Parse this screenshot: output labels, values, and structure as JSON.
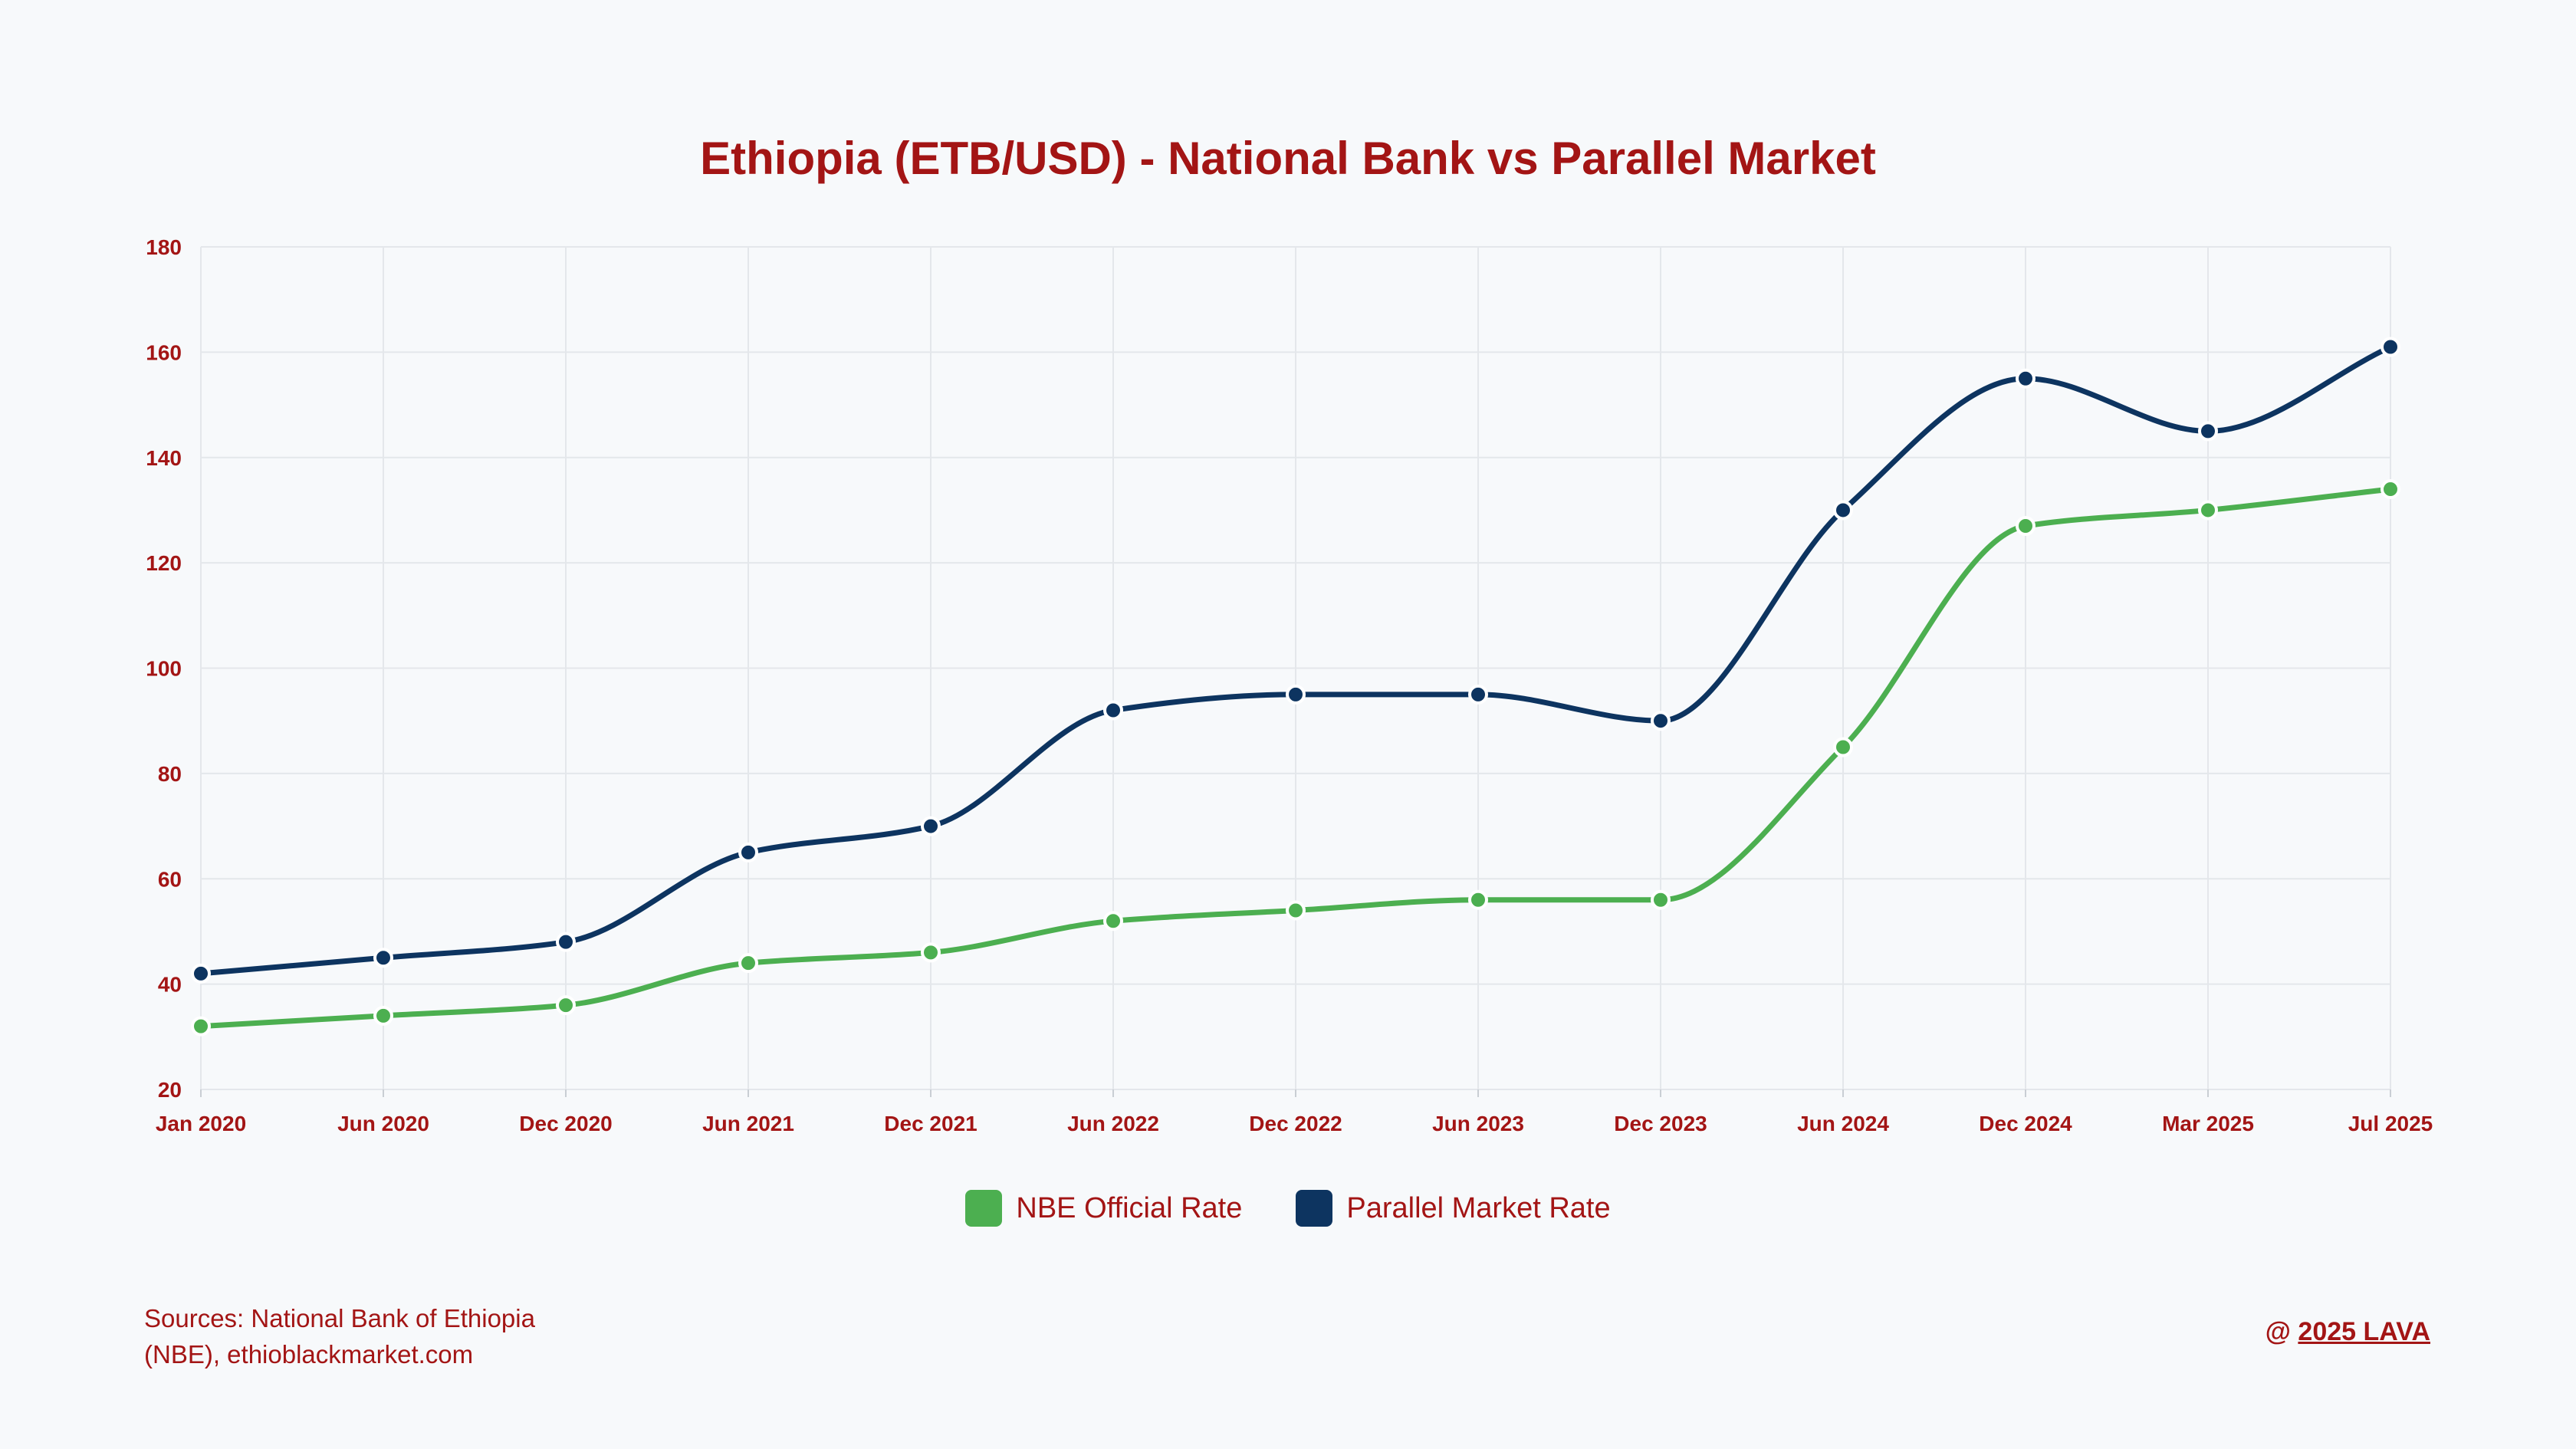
{
  "title": "Ethiopia (ETB/USD) - National Bank vs Parallel Market",
  "colors": {
    "text": "#a31515",
    "nbe": "#4caf50",
    "parallel": "#0d3460",
    "grid": "#e4e7eb"
  },
  "legend": [
    {
      "label": "NBE Official Rate",
      "color": "#4caf50"
    },
    {
      "label": "Parallel Market Rate",
      "color": "#0d3460"
    }
  ],
  "footer": {
    "sources_line1": "Sources: National Bank of Ethiopia",
    "sources_line2": "(NBE), ethioblackmarket.com",
    "copyright_prefix": "@ ",
    "copyright_link": "2025 LAVA"
  },
  "chart_data": {
    "type": "line",
    "title": "Ethiopia (ETB/USD) - National Bank vs Parallel Market",
    "xlabel": "",
    "ylabel": "",
    "categories": [
      "Jan 2020",
      "Jun 2020",
      "Dec 2020",
      "Jun 2021",
      "Dec 2021",
      "Jun 2022",
      "Dec 2022",
      "Jun 2023",
      "Dec 2023",
      "Jun 2024",
      "Dec 2024",
      "Mar 2025",
      "Jul 2025"
    ],
    "ylim": [
      20,
      180
    ],
    "yticks": [
      20,
      40,
      60,
      80,
      100,
      120,
      140,
      160,
      180
    ],
    "grid": true,
    "legend_position": "bottom",
    "series": [
      {
        "name": "NBE Official Rate",
        "color": "#4caf50",
        "values": [
          32,
          34,
          36,
          44,
          46,
          52,
          54,
          56,
          56,
          85,
          127,
          130,
          134
        ]
      },
      {
        "name": "Parallel Market Rate",
        "color": "#0d3460",
        "values": [
          42,
          45,
          48,
          65,
          70,
          92,
          95,
          95,
          90,
          130,
          155,
          145,
          161
        ]
      }
    ]
  }
}
